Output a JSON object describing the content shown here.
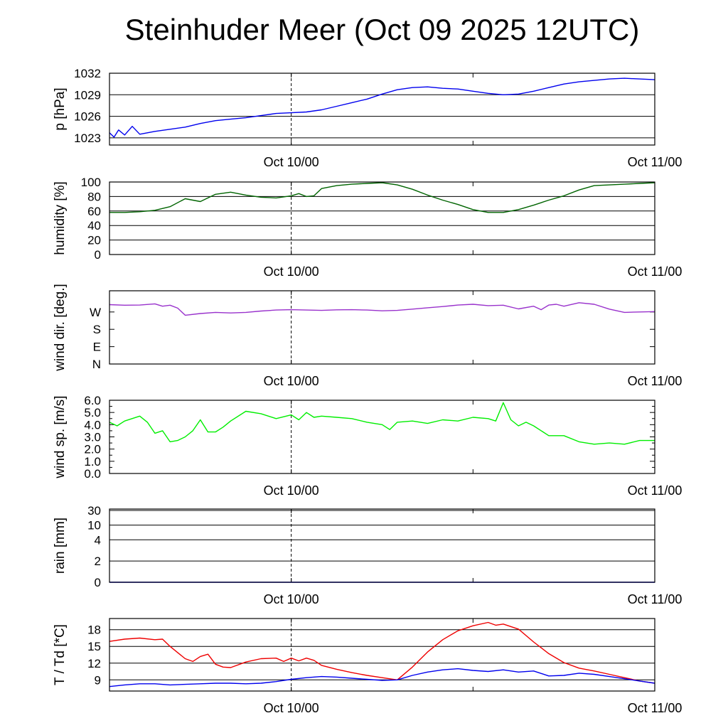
{
  "title": "Steinhuder Meer (Oct 09 2025 12UTC)",
  "time_axis": {
    "start": "Oct 09 12UTC",
    "end": "Oct 11 00UTC",
    "tick_labels": [
      "Oct 10/00",
      "Oct 11/00"
    ],
    "tick_hours": [
      12,
      36
    ],
    "minor_tick_hours": [
      24
    ],
    "vline_hour": 12
  },
  "chart_data": [
    {
      "type": "line",
      "ylabel": "p [hPa]",
      "ylim": [
        1022,
        1032
      ],
      "yticks": [
        1023,
        1026,
        1029,
        1032
      ],
      "ytick_labels": [
        "1023",
        "1026",
        "1029",
        "1032"
      ],
      "grid": true,
      "series": [
        {
          "color": "#0000ee",
          "x": [
            0,
            0.3,
            0.6,
            1.0,
            1.5,
            2,
            3,
            4,
            5,
            6,
            7,
            8,
            9,
            10,
            11,
            12,
            13,
            14,
            15,
            16,
            17,
            18,
            19,
            20,
            21,
            22,
            23,
            24,
            25,
            26,
            27,
            28,
            29,
            30,
            31,
            32,
            33,
            34,
            35,
            36
          ],
          "y": [
            1023.7,
            1023.1,
            1024.1,
            1023.4,
            1024.6,
            1023.5,
            1023.9,
            1024.2,
            1024.5,
            1025.0,
            1025.4,
            1025.6,
            1025.8,
            1026.1,
            1026.4,
            1026.5,
            1026.6,
            1026.9,
            1027.4,
            1027.9,
            1028.4,
            1029.1,
            1029.7,
            1030.0,
            1030.1,
            1029.9,
            1029.8,
            1029.5,
            1029.2,
            1029.0,
            1029.1,
            1029.5,
            1030.0,
            1030.5,
            1030.8,
            1031.0,
            1031.2,
            1031.3,
            1031.2,
            1031.1
          ]
        }
      ]
    },
    {
      "type": "line",
      "ylabel": "humidity [%]",
      "ylim": [
        0,
        100
      ],
      "yticks": [
        0,
        20,
        40,
        60,
        80,
        100
      ],
      "ytick_labels": [
        "0",
        "20",
        "40",
        "60",
        "80",
        "100"
      ],
      "grid": true,
      "series": [
        {
          "color": "#006400",
          "x": [
            0,
            1,
            2,
            3,
            4,
            5,
            6,
            7,
            8,
            9,
            10,
            11,
            12,
            12.5,
            13,
            13.5,
            14,
            15,
            16,
            17,
            18,
            19,
            20,
            21,
            22,
            23,
            24,
            25,
            26,
            27,
            28,
            29,
            30,
            31,
            32,
            33,
            34,
            35,
            36
          ],
          "y": [
            58,
            58,
            59,
            61,
            66,
            77,
            73,
            83,
            86,
            82,
            79,
            78,
            81,
            84,
            80,
            81,
            91,
            95,
            97,
            98,
            99,
            96,
            90,
            82,
            75,
            69,
            62,
            58,
            58,
            62,
            68,
            75,
            81,
            89,
            95,
            96,
            97,
            98,
            99
          ]
        }
      ]
    },
    {
      "type": "line",
      "ylabel": "wind dir. [deg.]",
      "ylim": [
        0,
        380
      ],
      "yticks": [
        0,
        90,
        180,
        270
      ],
      "ytick_labels": [
        "N",
        "E",
        "S",
        "W"
      ],
      "grid": false,
      "series": [
        {
          "color": "#9932cc",
          "x": [
            0,
            1,
            2,
            3,
            3.5,
            4,
            4.5,
            5,
            6,
            7,
            8,
            9,
            10,
            11,
            12,
            13,
            14,
            15,
            16,
            17,
            18,
            19,
            20,
            21,
            22,
            23,
            24,
            25,
            26,
            27,
            28,
            28.5,
            29,
            29.5,
            30,
            31,
            32,
            33,
            34,
            35,
            36
          ],
          "y": [
            308,
            305,
            306,
            312,
            300,
            305,
            290,
            253,
            262,
            268,
            265,
            268,
            275,
            280,
            282,
            280,
            278,
            281,
            282,
            280,
            276,
            278,
            285,
            292,
            298,
            306,
            310,
            303,
            305,
            286,
            300,
            282,
            306,
            310,
            300,
            318,
            310,
            285,
            268,
            270,
            272
          ]
        }
      ]
    },
    {
      "type": "line",
      "ylabel": "wind sp. [m/s]",
      "ylim": [
        0,
        6
      ],
      "yticks": [
        0.0,
        1.0,
        2.0,
        3.0,
        4.0,
        5.0,
        6.0
      ],
      "ytick_labels": [
        "0.0",
        "1.0",
        "2.0",
        "3.0",
        "4.0",
        "5.0",
        "6.0"
      ],
      "grid": false,
      "series": [
        {
          "color": "#00ee00",
          "x": [
            0,
            0.5,
            1,
            2,
            2.5,
            3,
            3.5,
            4,
            4.5,
            5,
            5.5,
            6,
            6.5,
            7,
            7.5,
            8,
            9,
            10,
            11,
            12,
            12.5,
            13,
            13.5,
            14,
            15,
            16,
            17,
            18,
            18.5,
            19,
            20,
            21,
            22,
            23,
            24,
            25,
            25.5,
            26,
            26.5,
            27,
            27.5,
            28,
            29,
            30,
            31,
            32,
            33,
            34,
            35,
            36
          ],
          "y": [
            4.2,
            3.9,
            4.3,
            4.7,
            4.2,
            3.3,
            3.5,
            2.6,
            2.7,
            3.0,
            3.5,
            4.4,
            3.4,
            3.4,
            3.8,
            4.3,
            5.1,
            4.9,
            4.5,
            4.8,
            4.4,
            5.0,
            4.6,
            4.7,
            4.6,
            4.5,
            4.2,
            4.0,
            3.6,
            4.2,
            4.3,
            4.1,
            4.4,
            4.3,
            4.6,
            4.5,
            4.3,
            5.8,
            4.4,
            3.9,
            4.2,
            3.9,
            3.1,
            3.1,
            2.6,
            2.4,
            2.5,
            2.4,
            2.7,
            2.7
          ]
        }
      ]
    },
    {
      "type": "line",
      "ylabel": "rain [mm]",
      "ylim": [
        0,
        30
      ],
      "yticks": [
        0,
        2,
        4,
        10,
        30
      ],
      "ytick_labels": [
        "0",
        "2",
        "4",
        "10",
        "30"
      ],
      "grid": true,
      "series": [
        {
          "color": "#0000ee",
          "x": [
            0,
            36
          ],
          "y": [
            0,
            0
          ]
        }
      ]
    },
    {
      "type": "line",
      "ylabel": "T / Td [*C]",
      "ylim": [
        7,
        20
      ],
      "yticks": [
        9,
        12,
        15,
        18
      ],
      "ytick_labels": [
        "9",
        "12",
        "15",
        "18"
      ],
      "grid": true,
      "series": [
        {
          "color": "#ee0000",
          "x": [
            0,
            1,
            2,
            3,
            3.5,
            4,
            4.5,
            5,
            5.5,
            6,
            6.5,
            7,
            7.5,
            8,
            9,
            10,
            11,
            11.5,
            12,
            12.5,
            13,
            13.5,
            14,
            15,
            16,
            17,
            18,
            19,
            20,
            21,
            22,
            23,
            24,
            25,
            25.5,
            26,
            27,
            28,
            29,
            30,
            31,
            32,
            33,
            34,
            35,
            36
          ],
          "y": [
            15.9,
            16.3,
            16.5,
            16.2,
            16.3,
            15.0,
            13.9,
            12.8,
            12.3,
            13.2,
            13.6,
            11.8,
            11.3,
            11.2,
            12.2,
            12.8,
            12.9,
            12.3,
            12.9,
            12.4,
            12.9,
            12.5,
            11.6,
            10.9,
            10.3,
            9.8,
            9.4,
            9.0,
            11.3,
            14.0,
            16.2,
            17.8,
            18.7,
            19.3,
            18.8,
            19.0,
            18.1,
            15.8,
            13.7,
            12.1,
            11.1,
            10.6,
            10.0,
            9.4,
            8.8,
            8.4
          ]
        },
        {
          "color": "#0000ee",
          "x": [
            0,
            1,
            2,
            3,
            4,
            5,
            6,
            7,
            8,
            9,
            10,
            11,
            12,
            13,
            14,
            15,
            16,
            17,
            18,
            19,
            20,
            21,
            22,
            23,
            24,
            25,
            26,
            27,
            28,
            29,
            30,
            31,
            32,
            33,
            34,
            35,
            36
          ],
          "y": [
            7.8,
            8.1,
            8.3,
            8.3,
            8.1,
            8.2,
            8.3,
            8.4,
            8.4,
            8.3,
            8.4,
            8.7,
            9.1,
            9.4,
            9.6,
            9.5,
            9.3,
            9.1,
            8.9,
            9.0,
            9.8,
            10.4,
            10.8,
            11.0,
            10.7,
            10.5,
            10.8,
            10.4,
            10.6,
            9.7,
            9.8,
            10.2,
            10.0,
            9.6,
            9.2,
            8.8,
            8.4
          ]
        }
      ]
    }
  ]
}
